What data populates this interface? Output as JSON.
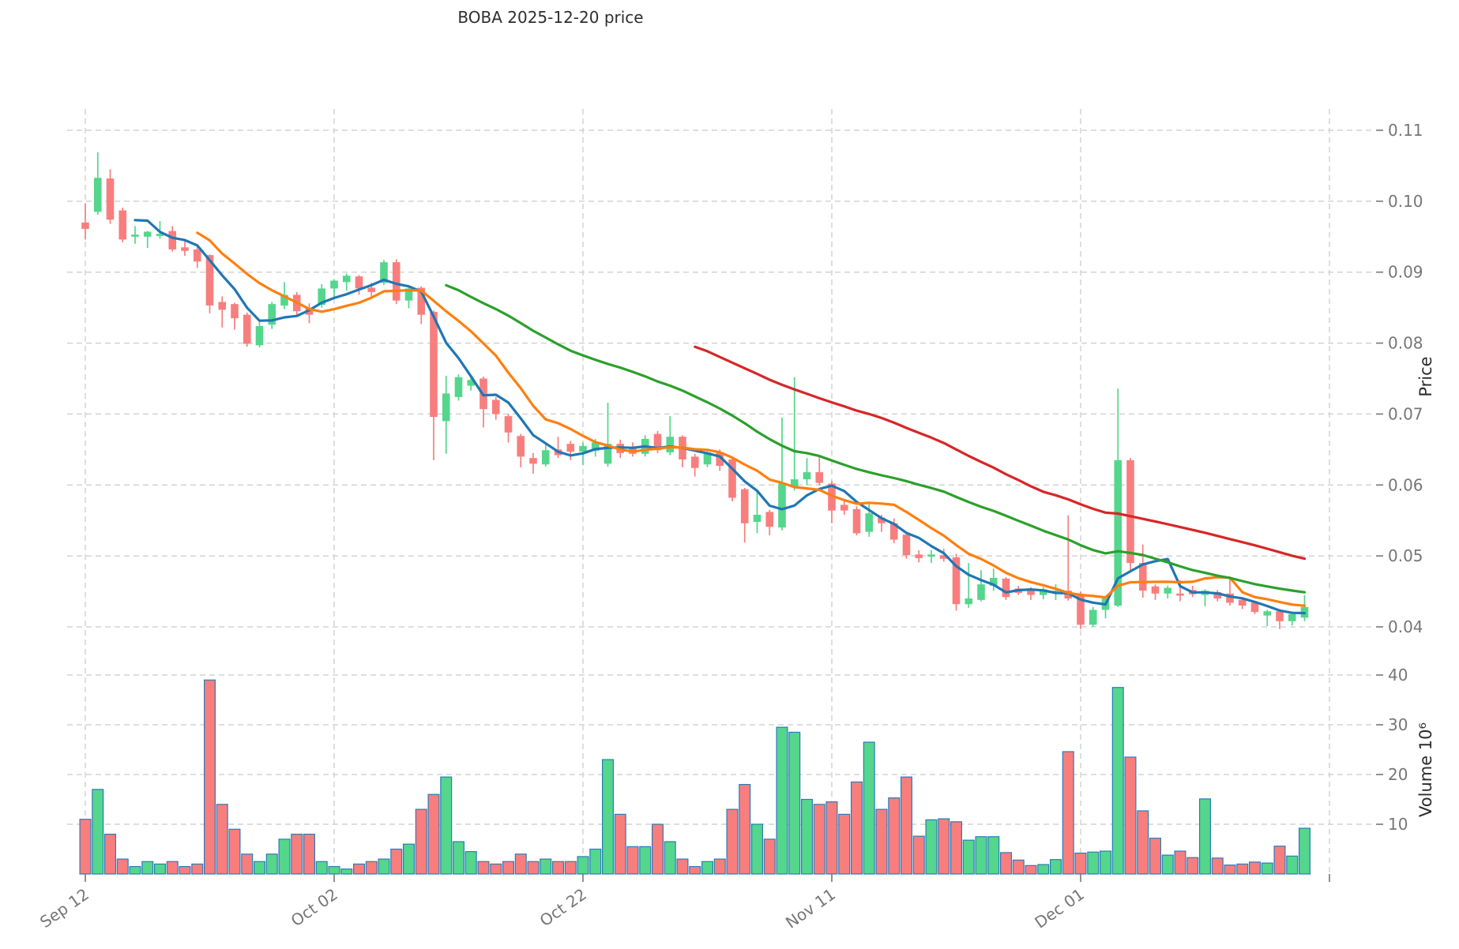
{
  "title": "BOBA  2025-12-20  price",
  "chart_data": {
    "type": "candlestick",
    "title": "BOBA  2025-12-20  price",
    "price_axis": {
      "label": "Price",
      "tick_values": [
        0.04,
        0.05,
        0.06,
        0.07,
        0.08,
        0.09,
        0.1,
        0.11
      ],
      "tick_labels": [
        "0.04",
        "0.05",
        "0.06",
        "0.07",
        "0.08",
        "0.09",
        "0.10",
        "0.11"
      ],
      "range": [
        0.038,
        0.112
      ]
    },
    "volume_axis": {
      "label": "Volume  10⁶",
      "tick_values": [
        10,
        20,
        30,
        40
      ],
      "tick_labels": [
        "10",
        "20",
        "30",
        "40"
      ],
      "range": [
        0,
        42
      ]
    },
    "x_axis": {
      "tick_labels": [
        "Sep 12",
        "Oct 02",
        "Oct 22",
        "Nov 11",
        "Dec 01"
      ],
      "tick_days": [
        0,
        20,
        40,
        60,
        80
      ],
      "extra_gridline_day": 100,
      "label_rotation_deg": -35
    },
    "legend_position": "none",
    "grid": true,
    "moving_averages": [
      {
        "name": "mav5",
        "window": 5,
        "color": "#1f77b4"
      },
      {
        "name": "mav10",
        "window": 10,
        "color": "#ff7f0e"
      },
      {
        "name": "mav30",
        "window": 30,
        "color": "#2ca02c"
      },
      {
        "name": "mav50",
        "window": 50,
        "color": "#d62728"
      }
    ],
    "colors": {
      "up": "#54d68c",
      "down": "#f87e7e",
      "volume_edge": "#2b7bba",
      "grid": "#d3d3d3",
      "tick_label": "#767676",
      "axis_title": "#2b2b2b",
      "title": "#2e2e2e"
    },
    "candles_format": "[open, high, low, close, volume_millions]",
    "candles": [
      [
        0.097,
        0.0997,
        0.0946,
        0.0961,
        11
      ],
      [
        0.0985,
        0.1069,
        0.0981,
        0.1033,
        17
      ],
      [
        0.1032,
        0.1045,
        0.0968,
        0.0974,
        8
      ],
      [
        0.0987,
        0.0991,
        0.0942,
        0.0946,
        3
      ],
      [
        0.095,
        0.0965,
        0.094,
        0.0953,
        1.5
      ],
      [
        0.095,
        0.0958,
        0.0934,
        0.0957,
        2.5
      ],
      [
        0.0951,
        0.0972,
        0.0947,
        0.0954,
        2
      ],
      [
        0.0958,
        0.0965,
        0.0929,
        0.0932,
        2.5
      ],
      [
        0.0935,
        0.0944,
        0.0923,
        0.093,
        1.5
      ],
      [
        0.0932,
        0.0936,
        0.0906,
        0.0915,
        2
      ],
      [
        0.0924,
        0.0925,
        0.0842,
        0.0853,
        39
      ],
      [
        0.0858,
        0.0866,
        0.0822,
        0.0847,
        14
      ],
      [
        0.0855,
        0.0857,
        0.0819,
        0.0835,
        9
      ],
      [
        0.084,
        0.0843,
        0.0795,
        0.0799,
        4
      ],
      [
        0.0797,
        0.083,
        0.0794,
        0.0824,
        2.5
      ],
      [
        0.0826,
        0.0858,
        0.082,
        0.0855,
        4
      ],
      [
        0.0853,
        0.0886,
        0.0848,
        0.0868,
        7
      ],
      [
        0.0868,
        0.0872,
        0.084,
        0.0845,
        8
      ],
      [
        0.085,
        0.0856,
        0.0828,
        0.084,
        8
      ],
      [
        0.0854,
        0.0883,
        0.085,
        0.0877,
        2.5
      ],
      [
        0.0877,
        0.089,
        0.0864,
        0.0888,
        1.5
      ],
      [
        0.0886,
        0.0898,
        0.0874,
        0.0895,
        1
      ],
      [
        0.0894,
        0.0896,
        0.0868,
        0.0877,
        2
      ],
      [
        0.0878,
        0.0885,
        0.0865,
        0.0872,
        2.5
      ],
      [
        0.0885,
        0.0917,
        0.0882,
        0.0914,
        3
      ],
      [
        0.0914,
        0.0918,
        0.0855,
        0.086,
        5
      ],
      [
        0.086,
        0.088,
        0.0849,
        0.0877,
        6
      ],
      [
        0.0878,
        0.088,
        0.0827,
        0.084,
        13
      ],
      [
        0.0844,
        0.0846,
        0.0635,
        0.0696,
        16
      ],
      [
        0.069,
        0.0754,
        0.0644,
        0.0729,
        19.5
      ],
      [
        0.0724,
        0.0756,
        0.0719,
        0.0752,
        6.5
      ],
      [
        0.074,
        0.0752,
        0.0733,
        0.0748,
        4.5
      ],
      [
        0.075,
        0.0753,
        0.0681,
        0.0707,
        2.5
      ],
      [
        0.072,
        0.0724,
        0.0692,
        0.07,
        2
      ],
      [
        0.0697,
        0.07,
        0.066,
        0.0674,
        2.5
      ],
      [
        0.0669,
        0.0672,
        0.0625,
        0.064,
        4
      ],
      [
        0.0638,
        0.0645,
        0.0616,
        0.063,
        2.5
      ],
      [
        0.0629,
        0.066,
        0.0626,
        0.0649,
        3
      ],
      [
        0.065,
        0.0668,
        0.0638,
        0.0642,
        2.5
      ],
      [
        0.0658,
        0.0662,
        0.0635,
        0.0647,
        2.5
      ],
      [
        0.0647,
        0.066,
        0.0628,
        0.0655,
        3.5
      ],
      [
        0.0648,
        0.0665,
        0.064,
        0.066,
        5
      ],
      [
        0.063,
        0.0716,
        0.0626,
        0.0658,
        23
      ],
      [
        0.0658,
        0.0664,
        0.0638,
        0.0645,
        12
      ],
      [
        0.0652,
        0.066,
        0.064,
        0.0644,
        5.5
      ],
      [
        0.0644,
        0.067,
        0.064,
        0.0665,
        5.5
      ],
      [
        0.0672,
        0.0676,
        0.0645,
        0.0649,
        10
      ],
      [
        0.0646,
        0.0697,
        0.0642,
        0.0668,
        6.5
      ],
      [
        0.0668,
        0.067,
        0.0625,
        0.0636,
        3
      ],
      [
        0.064,
        0.0644,
        0.0612,
        0.0624,
        1.5
      ],
      [
        0.0629,
        0.0648,
        0.0625,
        0.0646,
        2.5
      ],
      [
        0.0646,
        0.065,
        0.062,
        0.0627,
        3
      ],
      [
        0.0636,
        0.064,
        0.0577,
        0.0582,
        13
      ],
      [
        0.0594,
        0.0596,
        0.0519,
        0.0546,
        18
      ],
      [
        0.0548,
        0.059,
        0.0532,
        0.0558,
        10
      ],
      [
        0.0562,
        0.0565,
        0.0529,
        0.0541,
        7
      ],
      [
        0.054,
        0.0695,
        0.0536,
        0.0602,
        29.5
      ],
      [
        0.0597,
        0.0752,
        0.0592,
        0.0608,
        28.5
      ],
      [
        0.0608,
        0.0638,
        0.06,
        0.0618,
        15
      ],
      [
        0.0618,
        0.0641,
        0.06,
        0.0603,
        14
      ],
      [
        0.0602,
        0.0606,
        0.0546,
        0.0564,
        14.5
      ],
      [
        0.0572,
        0.0578,
        0.0558,
        0.0564,
        12
      ],
      [
        0.0566,
        0.057,
        0.0529,
        0.0532,
        18.5
      ],
      [
        0.0534,
        0.0575,
        0.0527,
        0.056,
        26.5
      ],
      [
        0.0554,
        0.0558,
        0.0534,
        0.0546,
        13
      ],
      [
        0.0546,
        0.0553,
        0.0518,
        0.0523,
        15.3
      ],
      [
        0.053,
        0.0534,
        0.0496,
        0.0501,
        19.5
      ],
      [
        0.0502,
        0.0508,
        0.0491,
        0.0497,
        7.6
      ],
      [
        0.0499,
        0.0508,
        0.049,
        0.0502,
        10.9
      ],
      [
        0.0501,
        0.051,
        0.0492,
        0.0496,
        11.1
      ],
      [
        0.0498,
        0.0503,
        0.0423,
        0.0432,
        10.5
      ],
      [
        0.0432,
        0.049,
        0.0427,
        0.044,
        6.8
      ],
      [
        0.0438,
        0.048,
        0.0436,
        0.046,
        7.5
      ],
      [
        0.0458,
        0.0482,
        0.0451,
        0.0469,
        7.5
      ],
      [
        0.0468,
        0.047,
        0.0438,
        0.0442,
        4.3
      ],
      [
        0.0454,
        0.0458,
        0.0445,
        0.0448,
        2.8
      ],
      [
        0.0453,
        0.0456,
        0.0438,
        0.0445,
        1.7
      ],
      [
        0.0445,
        0.0456,
        0.0439,
        0.0453,
        1.9
      ],
      [
        0.0449,
        0.046,
        0.0438,
        0.0451,
        2.9
      ],
      [
        0.0451,
        0.0557,
        0.0437,
        0.044,
        24.6
      ],
      [
        0.0446,
        0.045,
        0.0397,
        0.0403,
        4.2
      ],
      [
        0.0403,
        0.0428,
        0.04,
        0.0424,
        4.4
      ],
      [
        0.0424,
        0.0442,
        0.0412,
        0.044,
        4.6
      ],
      [
        0.043,
        0.0736,
        0.0428,
        0.0635,
        37.5
      ],
      [
        0.0635,
        0.0638,
        0.048,
        0.049,
        23.5
      ],
      [
        0.049,
        0.0516,
        0.0441,
        0.0451,
        12.7
      ],
      [
        0.0457,
        0.046,
        0.0438,
        0.0447,
        7.2
      ],
      [
        0.0447,
        0.0458,
        0.044,
        0.0455,
        3.8
      ],
      [
        0.0447,
        0.0466,
        0.0436,
        0.0444,
        4.6
      ],
      [
        0.0452,
        0.0458,
        0.0442,
        0.0446,
        3.3
      ],
      [
        0.0445,
        0.0453,
        0.0429,
        0.0451,
        15.1
      ],
      [
        0.0449,
        0.0452,
        0.0436,
        0.044,
        3.2
      ],
      [
        0.0447,
        0.0471,
        0.043,
        0.0434,
        1.8
      ],
      [
        0.0438,
        0.0442,
        0.0425,
        0.043,
        2.0
      ],
      [
        0.0434,
        0.0436,
        0.0418,
        0.0421,
        2.4
      ],
      [
        0.0416,
        0.0424,
        0.0401,
        0.0422,
        2.2
      ],
      [
        0.0422,
        0.0425,
        0.0397,
        0.0408,
        5.6
      ],
      [
        0.0408,
        0.042,
        0.0402,
        0.0418,
        3.6
      ],
      [
        0.0413,
        0.0445,
        0.0408,
        0.0428,
        9.2
      ]
    ]
  },
  "layout_note": "geometry only in template"
}
